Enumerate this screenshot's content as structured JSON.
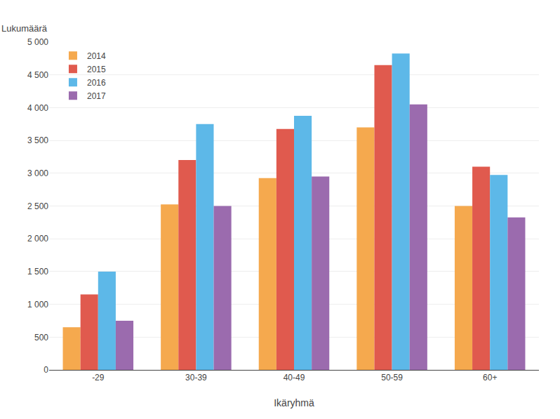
{
  "chart_data": {
    "type": "bar",
    "categories": [
      "-29",
      "30-39",
      "40-49",
      "50-59",
      "60+"
    ],
    "series": [
      {
        "name": "2014",
        "color": "#F5A94E",
        "values": [
          650,
          2525,
          2925,
          3700,
          2500
        ]
      },
      {
        "name": "2015",
        "color": "#E05A4E",
        "values": [
          1150,
          3200,
          3675,
          4650,
          3100
        ]
      },
      {
        "name": "2016",
        "color": "#5DB8E8",
        "values": [
          1500,
          3750,
          3875,
          4825,
          2975
        ]
      },
      {
        "name": "2017",
        "color": "#9B6BAE",
        "values": [
          750,
          2500,
          2950,
          4050,
          2325
        ]
      }
    ],
    "xlabel": "Ikäryhmä",
    "ylabel": "Lukumäärä",
    "ylim": [
      0,
      5000
    ],
    "yticks": [
      0,
      500,
      {
        "value": 1000,
        "label": "1 000"
      },
      {
        "value": 1500,
        "label": "1 500"
      },
      {
        "value": 2000,
        "label": "2 000"
      },
      {
        "value": 2500,
        "label": "2 500"
      },
      {
        "value": 3000,
        "label": "3 000"
      },
      {
        "value": 3500,
        "label": "3 500"
      },
      {
        "value": 4000,
        "label": "4 000"
      },
      {
        "value": 4500,
        "label": "4 500"
      },
      {
        "value": 5000,
        "label": "5 000"
      }
    ],
    "grid": true,
    "legend": "upper left"
  }
}
